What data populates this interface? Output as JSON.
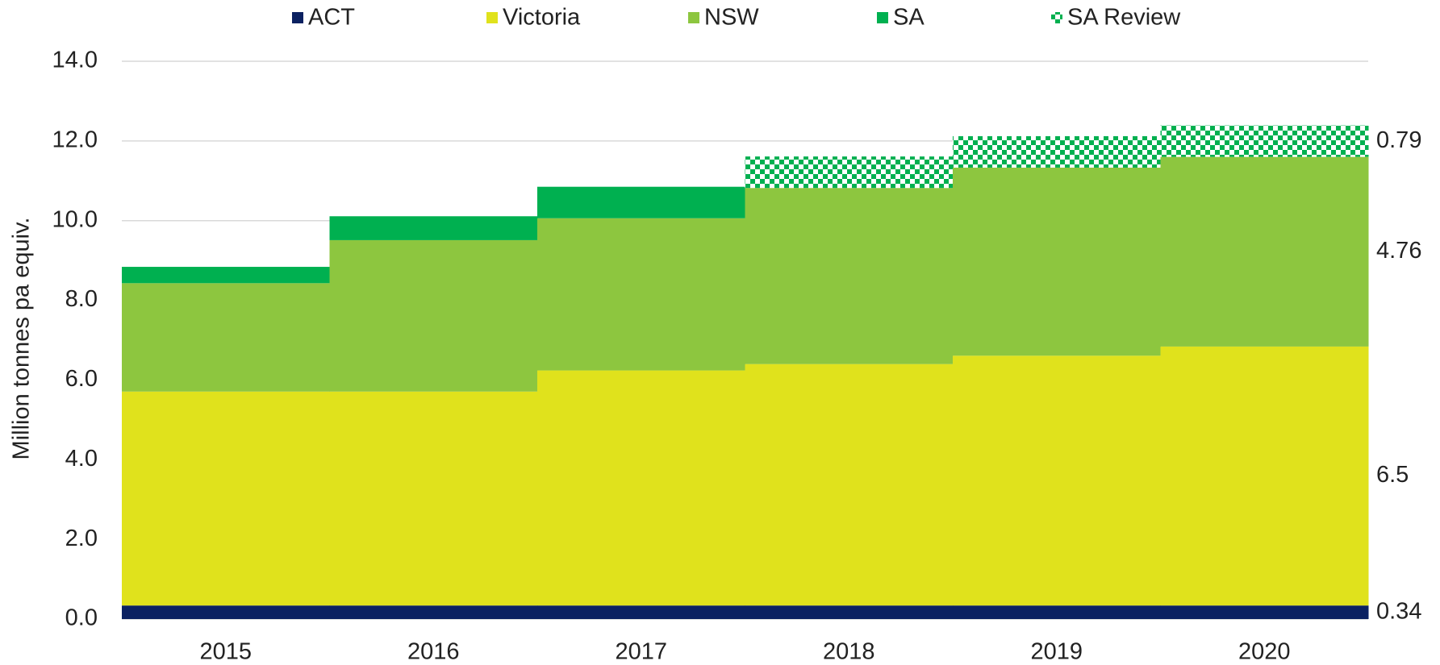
{
  "chart_data": {
    "type": "stacked-step-area",
    "y_label": "Million tonnes pa equiv.",
    "categories": [
      "2015",
      "2016",
      "2017",
      "2018",
      "2019",
      "2020"
    ],
    "series": [
      {
        "name": "ACT",
        "color": "#0b2161",
        "values": [
          0.34,
          0.34,
          0.34,
          0.34,
          0.34,
          0.34
        ]
      },
      {
        "name": "Victoria",
        "color": "#e0e21c",
        "values": [
          5.37,
          5.37,
          5.9,
          6.06,
          6.27,
          6.5
        ]
      },
      {
        "name": "NSW",
        "color": "#8dc63f",
        "values": [
          2.72,
          3.8,
          3.82,
          4.42,
          4.72,
          4.76
        ]
      },
      {
        "name": "SA",
        "color": "#00b050",
        "values": [
          0.41,
          0.6,
          0.79,
          0,
          0,
          0
        ]
      },
      {
        "name": "SA Review",
        "color": "#00b050",
        "pattern": "checkered",
        "values": [
          0,
          0,
          0,
          0.79,
          0.79,
          0.79
        ]
      }
    ],
    "end_labels": [
      0,
      1,
      2,
      4
    ],
    "ylim": [
      0,
      14
    ],
    "yticks": [
      {
        "value": 0,
        "label": "0.0"
      },
      {
        "value": 2,
        "label": "2.0"
      },
      {
        "value": 4,
        "label": "4.0"
      },
      {
        "value": 6,
        "label": "6.0"
      },
      {
        "value": 8,
        "label": "8.0"
      },
      {
        "value": 10,
        "label": "10.0"
      },
      {
        "value": 12,
        "label": "12.0"
      },
      {
        "value": 14,
        "label": "14.0"
      }
    ],
    "grid": true
  }
}
